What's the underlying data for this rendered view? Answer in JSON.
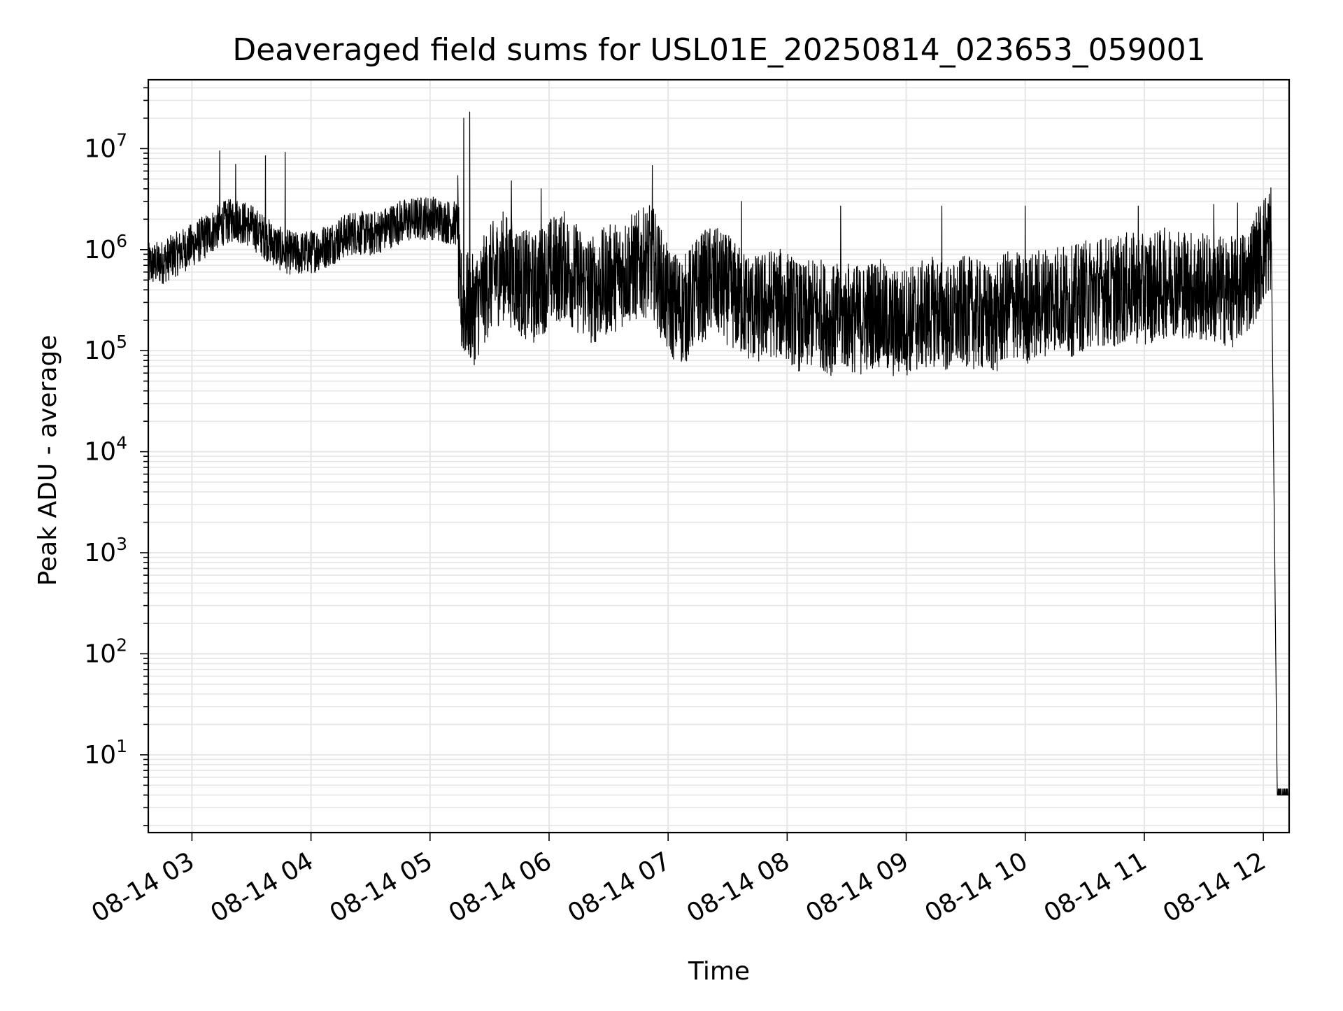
{
  "chart_data": {
    "type": "line",
    "title": "Deaveraged field sums for USL01E_20250814_023653_059001",
    "xlabel": "Time",
    "ylabel": "Peak ADU - average",
    "yscale": "log",
    "xlim": [
      "08-14 02:38",
      "08-14 12:13"
    ],
    "ylim": [
      1.7,
      48000000
    ],
    "grid": true,
    "colors": {
      "line": "#000000",
      "grid": "#e6e6e6",
      "axes": "#000000"
    },
    "x_ticks": [
      {
        "value": "08-14 03:00",
        "label": "08-14 03"
      },
      {
        "value": "08-14 04:00",
        "label": "08-14 04"
      },
      {
        "value": "08-14 05:00",
        "label": "08-14 05"
      },
      {
        "value": "08-14 06:00",
        "label": "08-14 06"
      },
      {
        "value": "08-14 07:00",
        "label": "08-14 07"
      },
      {
        "value": "08-14 08:00",
        "label": "08-14 08"
      },
      {
        "value": "08-14 09:00",
        "label": "08-14 09"
      },
      {
        "value": "08-14 10:00",
        "label": "08-14 10"
      },
      {
        "value": "08-14 11:00",
        "label": "08-14 11"
      },
      {
        "value": "08-14 12:00",
        "label": "08-14 12"
      }
    ],
    "y_ticks": [
      {
        "value": 10,
        "base": "10",
        "exp": "1"
      },
      {
        "value": 100,
        "base": "10",
        "exp": "2"
      },
      {
        "value": 1000,
        "base": "10",
        "exp": "3"
      },
      {
        "value": 10000,
        "base": "10",
        "exp": "4"
      },
      {
        "value": 100000,
        "base": "10",
        "exp": "5"
      },
      {
        "value": 1000000,
        "base": "10",
        "exp": "6"
      },
      {
        "value": 10000000,
        "base": "10",
        "exp": "7"
      }
    ],
    "series": [
      {
        "x": [
          "08-14 02:38",
          "08-14 02:45",
          "08-14 02:52",
          "08-14 03:00",
          "08-14 03:08",
          "08-14 03:15",
          "08-14 03:22",
          "08-14 03:30",
          "08-14 03:37",
          "08-14 03:45",
          "08-14 03:52",
          "08-14 04:00",
          "08-14 04:08",
          "08-14 04:15",
          "08-14 04:22",
          "08-14 04:30",
          "08-14 04:37",
          "08-14 04:45",
          "08-14 04:52",
          "08-14 05:00",
          "08-14 05:08",
          "08-14 05:14",
          "08-14 05:15",
          "08-14 05:22",
          "08-14 05:30",
          "08-14 05:37",
          "08-14 05:45",
          "08-14 05:52",
          "08-14 06:00",
          "08-14 06:08",
          "08-14 06:15",
          "08-14 06:22",
          "08-14 06:30",
          "08-14 06:37",
          "08-14 06:45",
          "08-14 06:52",
          "08-14 07:00",
          "08-14 07:08",
          "08-14 07:15",
          "08-14 07:22",
          "08-14 07:30",
          "08-14 07:37",
          "08-14 07:45",
          "08-14 07:52",
          "08-14 08:00",
          "08-14 08:08",
          "08-14 08:15",
          "08-14 08:22",
          "08-14 08:30",
          "08-14 08:37",
          "08-14 08:45",
          "08-14 08:52",
          "08-14 09:00",
          "08-14 09:08",
          "08-14 09:15",
          "08-14 09:22",
          "08-14 09:30",
          "08-14 09:37",
          "08-14 09:45",
          "08-14 09:52",
          "08-14 10:00",
          "08-14 10:08",
          "08-14 10:15",
          "08-14 10:22",
          "08-14 10:30",
          "08-14 10:37",
          "08-14 10:45",
          "08-14 10:52",
          "08-14 11:00",
          "08-14 11:08",
          "08-14 11:15",
          "08-14 11:22",
          "08-14 11:30",
          "08-14 11:37",
          "08-14 11:45",
          "08-14 11:52",
          "08-14 12:00",
          "08-14 12:04",
          "08-14 12:07",
          "08-14 12:13"
        ],
        "y": [
          700000,
          750000,
          900000,
          1100000,
          1400000,
          1800000,
          2000000,
          1700000,
          1300000,
          1000000,
          900000,
          950000,
          1100000,
          1300000,
          1500000,
          1400000,
          1600000,
          1900000,
          2000000,
          2100000,
          1900000,
          1800000,
          300000,
          250000,
          500000,
          700000,
          500000,
          400000,
          600000,
          700000,
          500000,
          400000,
          500000,
          600000,
          700000,
          800000,
          300000,
          250000,
          400000,
          500000,
          400000,
          300000,
          250000,
          300000,
          280000,
          200000,
          250000,
          200000,
          220000,
          200000,
          250000,
          180000,
          200000,
          220000,
          250000,
          200000,
          250000,
          220000,
          200000,
          300000,
          250000,
          300000,
          350000,
          300000,
          350000,
          400000,
          380000,
          420000,
          400000,
          450000,
          500000,
          450000,
          420000,
          400000,
          380000,
          500000,
          1000000,
          1400000,
          4,
          4
        ],
        "spikes": [
          {
            "x": "08-14 03:14",
            "y": 9500000
          },
          {
            "x": "08-14 03:22",
            "y": 7000000
          },
          {
            "x": "08-14 03:37",
            "y": 8500000
          },
          {
            "x": "08-14 03:47",
            "y": 9200000
          },
          {
            "x": "08-14 05:17",
            "y": 20000000
          },
          {
            "x": "08-14 05:20",
            "y": 23000000
          },
          {
            "x": "08-14 05:41",
            "y": 4800000
          },
          {
            "x": "08-14 05:56",
            "y": 4000000
          },
          {
            "x": "08-14 06:52",
            "y": 6800000
          },
          {
            "x": "08-14 07:37",
            "y": 3000000
          },
          {
            "x": "08-14 08:27",
            "y": 2700000
          },
          {
            "x": "08-14 09:18",
            "y": 2700000
          },
          {
            "x": "08-14 10:00",
            "y": 2700000
          },
          {
            "x": "08-14 10:57",
            "y": 2700000
          },
          {
            "x": "08-14 11:35",
            "y": 2800000
          },
          {
            "x": "08-14 11:47",
            "y": 2900000
          }
        ]
      }
    ]
  }
}
